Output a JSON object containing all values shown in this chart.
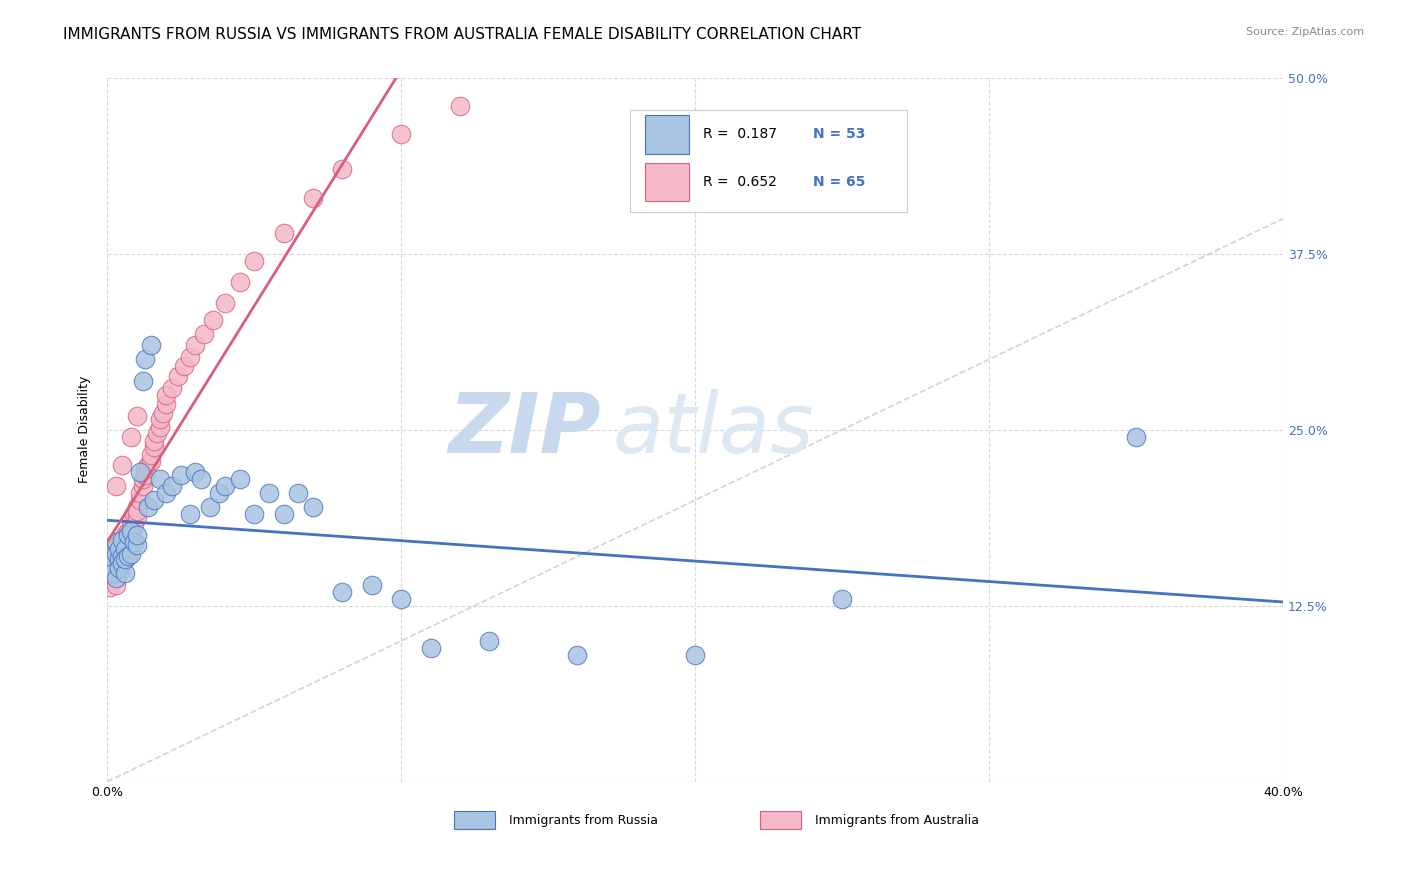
{
  "title": "IMMIGRANTS FROM RUSSIA VS IMMIGRANTS FROM AUSTRALIA FEMALE DISABILITY CORRELATION CHART",
  "source": "Source: ZipAtlas.com",
  "ylabel": "Female Disability",
  "xlim": [
    0.0,
    0.4
  ],
  "ylim": [
    0.0,
    0.5
  ],
  "xticks": [
    0.0,
    0.1,
    0.2,
    0.3,
    0.4
  ],
  "yticks": [
    0.0,
    0.125,
    0.25,
    0.375,
    0.5
  ],
  "xticklabels_bottom": [
    "0.0%",
    "",
    "",
    "",
    "40.0%"
  ],
  "yticklabels_right": [
    "",
    "12.5%",
    "25.0%",
    "37.5%",
    "50.0%"
  ],
  "legend_r": [
    "0.187",
    "0.652"
  ],
  "legend_n": [
    "53",
    "65"
  ],
  "scatter_russia_x": [
    0.001,
    0.002,
    0.002,
    0.003,
    0.003,
    0.003,
    0.004,
    0.004,
    0.004,
    0.005,
    0.005,
    0.005,
    0.006,
    0.006,
    0.006,
    0.007,
    0.007,
    0.008,
    0.008,
    0.009,
    0.01,
    0.01,
    0.011,
    0.012,
    0.013,
    0.014,
    0.015,
    0.016,
    0.018,
    0.02,
    0.022,
    0.025,
    0.028,
    0.03,
    0.032,
    0.035,
    0.038,
    0.04,
    0.045,
    0.05,
    0.055,
    0.06,
    0.065,
    0.07,
    0.08,
    0.09,
    0.1,
    0.11,
    0.13,
    0.16,
    0.2,
    0.25,
    0.35
  ],
  "scatter_russia_y": [
    0.16,
    0.155,
    0.148,
    0.162,
    0.17,
    0.145,
    0.158,
    0.165,
    0.152,
    0.16,
    0.155,
    0.172,
    0.148,
    0.165,
    0.158,
    0.175,
    0.16,
    0.178,
    0.162,
    0.17,
    0.168,
    0.175,
    0.22,
    0.285,
    0.3,
    0.195,
    0.31,
    0.2,
    0.215,
    0.205,
    0.21,
    0.218,
    0.19,
    0.22,
    0.215,
    0.195,
    0.205,
    0.21,
    0.215,
    0.19,
    0.205,
    0.19,
    0.205,
    0.195,
    0.135,
    0.14,
    0.13,
    0.095,
    0.1,
    0.09,
    0.09,
    0.13,
    0.245
  ],
  "scatter_australia_x": [
    0.001,
    0.001,
    0.002,
    0.002,
    0.002,
    0.003,
    0.003,
    0.003,
    0.004,
    0.004,
    0.004,
    0.005,
    0.005,
    0.005,
    0.006,
    0.006,
    0.006,
    0.007,
    0.007,
    0.007,
    0.008,
    0.008,
    0.008,
    0.009,
    0.009,
    0.01,
    0.01,
    0.01,
    0.011,
    0.011,
    0.012,
    0.012,
    0.013,
    0.013,
    0.014,
    0.015,
    0.015,
    0.016,
    0.016,
    0.017,
    0.018,
    0.018,
    0.019,
    0.02,
    0.02,
    0.022,
    0.024,
    0.026,
    0.028,
    0.03,
    0.033,
    0.036,
    0.04,
    0.045,
    0.05,
    0.06,
    0.07,
    0.08,
    0.1,
    0.12,
    0.002,
    0.003,
    0.005,
    0.008,
    0.01
  ],
  "scatter_australia_y": [
    0.145,
    0.138,
    0.152,
    0.148,
    0.155,
    0.158,
    0.165,
    0.14,
    0.162,
    0.17,
    0.148,
    0.16,
    0.155,
    0.168,
    0.175,
    0.162,
    0.158,
    0.178,
    0.165,
    0.172,
    0.18,
    0.175,
    0.185,
    0.182,
    0.19,
    0.188,
    0.195,
    0.192,
    0.2,
    0.205,
    0.21,
    0.215,
    0.218,
    0.222,
    0.225,
    0.228,
    0.232,
    0.238,
    0.242,
    0.248,
    0.252,
    0.258,
    0.262,
    0.268,
    0.275,
    0.28,
    0.288,
    0.295,
    0.302,
    0.31,
    0.318,
    0.328,
    0.34,
    0.355,
    0.37,
    0.39,
    0.415,
    0.435,
    0.46,
    0.48,
    0.148,
    0.21,
    0.225,
    0.245,
    0.26
  ],
  "color_russia": "#a8c4e0",
  "color_australia": "#f4b8c8",
  "color_russia_line": "#4472c4",
  "color_australia_line": "#d4607a",
  "color_diagonal": "#c8c8c8",
  "background_color": "#ffffff",
  "grid_color": "#d0d0d0",
  "title_fontsize": 11,
  "axis_label_fontsize": 9,
  "tick_fontsize": 9,
  "source_fontsize": 8,
  "watermark_color": "#d0dff0",
  "watermark_fontsize": 60
}
